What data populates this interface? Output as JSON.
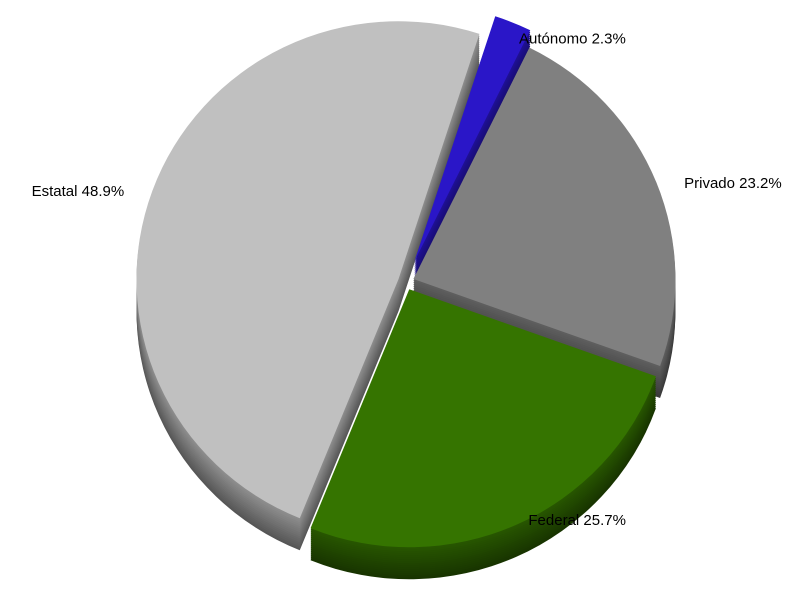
{
  "chart_data": {
    "type": "pie",
    "categories": [
      "Autónomo",
      "Privado",
      "Federal",
      "Estatal"
    ],
    "values": [
      2.3,
      23.2,
      25.7,
      48.9
    ],
    "value_labels": [
      "2.3%",
      "23.2%",
      "25.7%",
      "48.9%"
    ],
    "colors": [
      "#2a16c8",
      "#808080",
      "#357400",
      "#c0c0c0"
    ]
  }
}
